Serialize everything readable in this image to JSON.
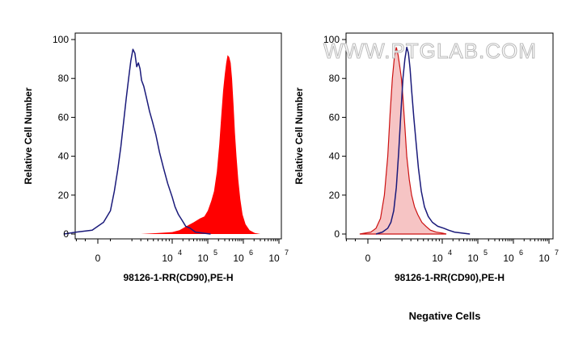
{
  "watermark": "WWW.PTGLAB.COM",
  "caption": "Negative Cells",
  "colors": {
    "stained_fill": "#ff0000",
    "negative_control_line": "#1a1a7a",
    "negative_control_fill": "#f6c4c4",
    "negative_control_outline": "#cc1111",
    "axis": "#000000"
  },
  "chart_data": [
    {
      "type": "area",
      "title": "",
      "xlabel": "98126-1-RR(CD90),PE-H",
      "ylabel": "Relative Cell Number",
      "xscale": "biexponential (linear near 0, log10 above)",
      "ylim": [
        0,
        100
      ],
      "yticks": [
        "0",
        "20",
        "40",
        "60",
        "80",
        "100"
      ],
      "xticks": [
        {
          "base": "0",
          "exp": ""
        },
        {
          "base": "10",
          "exp": "4"
        },
        {
          "base": "10",
          "exp": "5"
        },
        {
          "base": "10",
          "exp": "6"
        },
        {
          "base": "10",
          "exp": "7"
        }
      ],
      "series": [
        {
          "style": "line",
          "color": "#1a1a7a",
          "points": [
            [
              -2000,
              0
            ],
            [
              -1000,
              1
            ],
            [
              -200,
              2
            ],
            [
              200,
              6
            ],
            [
              500,
              12
            ],
            [
              700,
              22
            ],
            [
              900,
              33
            ],
            [
              1100,
              45
            ],
            [
              1300,
              58
            ],
            [
              1500,
              70
            ],
            [
              1700,
              80
            ],
            [
              1900,
              89
            ],
            [
              2100,
              95
            ],
            [
              2300,
              93
            ],
            [
              2500,
              86
            ],
            [
              2700,
              88
            ],
            [
              2900,
              85
            ],
            [
              3100,
              79
            ],
            [
              3400,
              76
            ],
            [
              3800,
              70
            ],
            [
              4300,
              63
            ],
            [
              4800,
              58
            ],
            [
              5500,
              51
            ],
            [
              6300,
              42
            ],
            [
              7300,
              34
            ],
            [
              8500,
              26
            ],
            [
              10000,
              19
            ],
            [
              12000,
              14
            ],
            [
              15000,
              10
            ],
            [
              19000,
              7
            ],
            [
              24000,
              4
            ],
            [
              32000,
              3
            ],
            [
              45000,
              1
            ],
            [
              70000,
              0.5
            ],
            [
              120000,
              0
            ]
          ]
        },
        {
          "style": "filled",
          "color": "#ff0000",
          "points": [
            [
              3000,
              0
            ],
            [
              6000,
              0.5
            ],
            [
              10000,
              1
            ],
            [
              16000,
              2
            ],
            [
              25000,
              4
            ],
            [
              40000,
              6
            ],
            [
              60000,
              8
            ],
            [
              80000,
              9
            ],
            [
              100000,
              12
            ],
            [
              125000,
              17
            ],
            [
              150000,
              22
            ],
            [
              180000,
              32
            ],
            [
              210000,
              46
            ],
            [
              240000,
              61
            ],
            [
              270000,
              74
            ],
            [
              300000,
              82
            ],
            [
              330000,
              88
            ],
            [
              360000,
              92
            ],
            [
              400000,
              91
            ],
            [
              440000,
              88
            ],
            [
              480000,
              80
            ],
            [
              530000,
              66
            ],
            [
              580000,
              52
            ],
            [
              640000,
              40
            ],
            [
              720000,
              28
            ],
            [
              820000,
              18
            ],
            [
              950000,
              10
            ],
            [
              1150000,
              5
            ],
            [
              1500000,
              2
            ],
            [
              2100000,
              0.5
            ],
            [
              3000000,
              0
            ]
          ]
        }
      ]
    },
    {
      "type": "area",
      "title": "",
      "xlabel": "98126-1-RR(CD90),PE-H",
      "ylabel": "Relative Cell Number",
      "xscale": "biexponential (linear near 0, log10 above)",
      "ylim": [
        0,
        100
      ],
      "yticks": [
        "0",
        "20",
        "40",
        "60",
        "80",
        "100"
      ],
      "xticks": [
        {
          "base": "0",
          "exp": ""
        },
        {
          "base": "10",
          "exp": "4"
        },
        {
          "base": "10",
          "exp": "5"
        },
        {
          "base": "10",
          "exp": "6"
        },
        {
          "base": "10",
          "exp": "7"
        }
      ],
      "series": [
        {
          "style": "filled-outline",
          "color": "#f6c4c4",
          "outline": "#cc1111",
          "points": [
            [
              -300,
              0
            ],
            [
              100,
              1
            ],
            [
              300,
              3
            ],
            [
              500,
              8
            ],
            [
              700,
              20
            ],
            [
              900,
              40
            ],
            [
              1050,
              62
            ],
            [
              1200,
              80
            ],
            [
              1350,
              91
            ],
            [
              1500,
              96
            ],
            [
              1650,
              92
            ],
            [
              1800,
              86
            ],
            [
              1950,
              80
            ],
            [
              2100,
              70
            ],
            [
              2300,
              55
            ],
            [
              2500,
              40
            ],
            [
              2800,
              28
            ],
            [
              3100,
              20
            ],
            [
              3500,
              14
            ],
            [
              4000,
              10
            ],
            [
              4700,
              6
            ],
            [
              5500,
              4
            ],
            [
              6500,
              2
            ],
            [
              8000,
              1
            ],
            [
              10000,
              0.5
            ],
            [
              13000,
              0
            ]
          ]
        },
        {
          "style": "line",
          "color": "#1a1a7a",
          "points": [
            [
              300,
              0
            ],
            [
              600,
              1
            ],
            [
              900,
              3
            ],
            [
              1100,
              6
            ],
            [
              1300,
              12
            ],
            [
              1500,
              24
            ],
            [
              1700,
              42
            ],
            [
              1900,
              62
            ],
            [
              2100,
              80
            ],
            [
              2300,
              90
            ],
            [
              2500,
              96
            ],
            [
              2700,
              93
            ],
            [
              2900,
              85
            ],
            [
              3100,
              74
            ],
            [
              3400,
              60
            ],
            [
              3700,
              48
            ],
            [
              4100,
              34
            ],
            [
              4600,
              22
            ],
            [
              5200,
              14
            ],
            [
              6000,
              9
            ],
            [
              7000,
              6
            ],
            [
              8500,
              4
            ],
            [
              11000,
              3
            ],
            [
              15000,
              2
            ],
            [
              22000,
              1
            ],
            [
              35000,
              0.5
            ],
            [
              60000,
              0
            ]
          ]
        }
      ]
    }
  ]
}
